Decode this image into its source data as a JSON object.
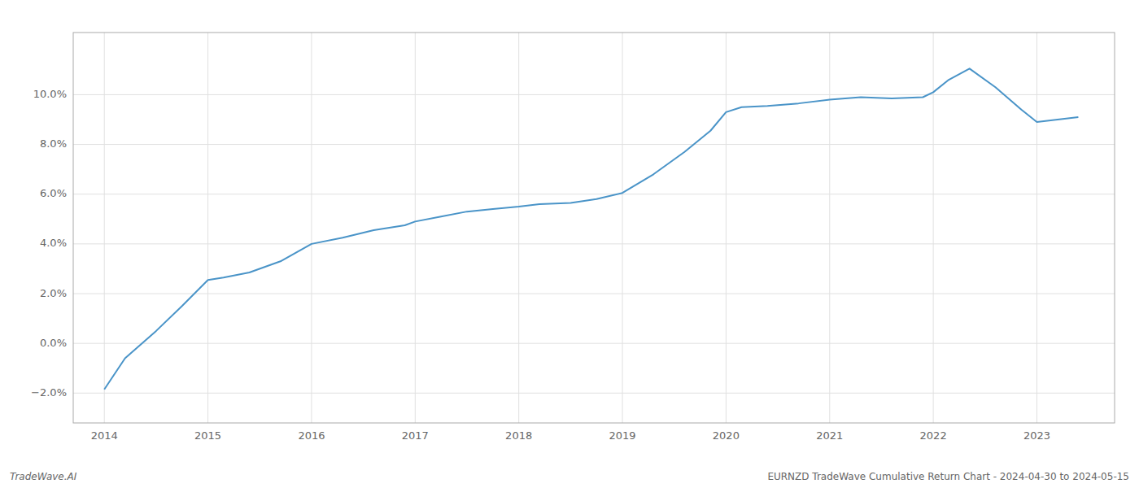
{
  "chart_data": {
    "type": "line",
    "x": [
      2014.0,
      2014.2,
      2014.5,
      2014.75,
      2015.0,
      2015.15,
      2015.4,
      2015.7,
      2016.0,
      2016.3,
      2016.6,
      2016.9,
      2017.0,
      2017.25,
      2017.5,
      2017.75,
      2018.0,
      2018.2,
      2018.5,
      2018.75,
      2019.0,
      2019.3,
      2019.6,
      2019.85,
      2020.0,
      2020.15,
      2020.4,
      2020.7,
      2021.0,
      2021.3,
      2021.6,
      2021.9,
      2022.0,
      2022.15,
      2022.35,
      2022.6,
      2022.85,
      2023.0,
      2023.4
    ],
    "values": [
      -1.85,
      -0.6,
      0.5,
      1.5,
      2.55,
      2.65,
      2.85,
      3.3,
      4.0,
      4.25,
      4.55,
      4.75,
      4.9,
      5.1,
      5.3,
      5.4,
      5.5,
      5.6,
      5.65,
      5.8,
      6.05,
      6.8,
      7.7,
      8.55,
      9.3,
      9.5,
      9.55,
      9.65,
      9.8,
      9.9,
      9.85,
      9.9,
      10.1,
      10.6,
      11.05,
      10.3,
      9.4,
      8.9,
      9.1
    ],
    "color": "#4a94c8",
    "xlim": [
      2013.7,
      2023.75
    ],
    "ylim": [
      -3.2,
      12.5
    ],
    "xticks": [
      2014,
      2015,
      2016,
      2017,
      2018,
      2019,
      2020,
      2021,
      2022,
      2023
    ],
    "yticks": [
      {
        "value": -2.0,
        "label": "−2.0%"
      },
      {
        "value": 0.0,
        "label": "0.0%"
      },
      {
        "value": 2.0,
        "label": "2.0%"
      },
      {
        "value": 4.0,
        "label": "4.0%"
      },
      {
        "value": 6.0,
        "label": "6.0%"
      },
      {
        "value": 8.0,
        "label": "8.0%"
      },
      {
        "value": 10.0,
        "label": "10.0%"
      }
    ],
    "grid": true,
    "annotations": [
      "TradeWave.AI",
      "EURNZD TradeWave Cumulative Return Chart - 2024-04-30 to 2024-05-15"
    ]
  }
}
